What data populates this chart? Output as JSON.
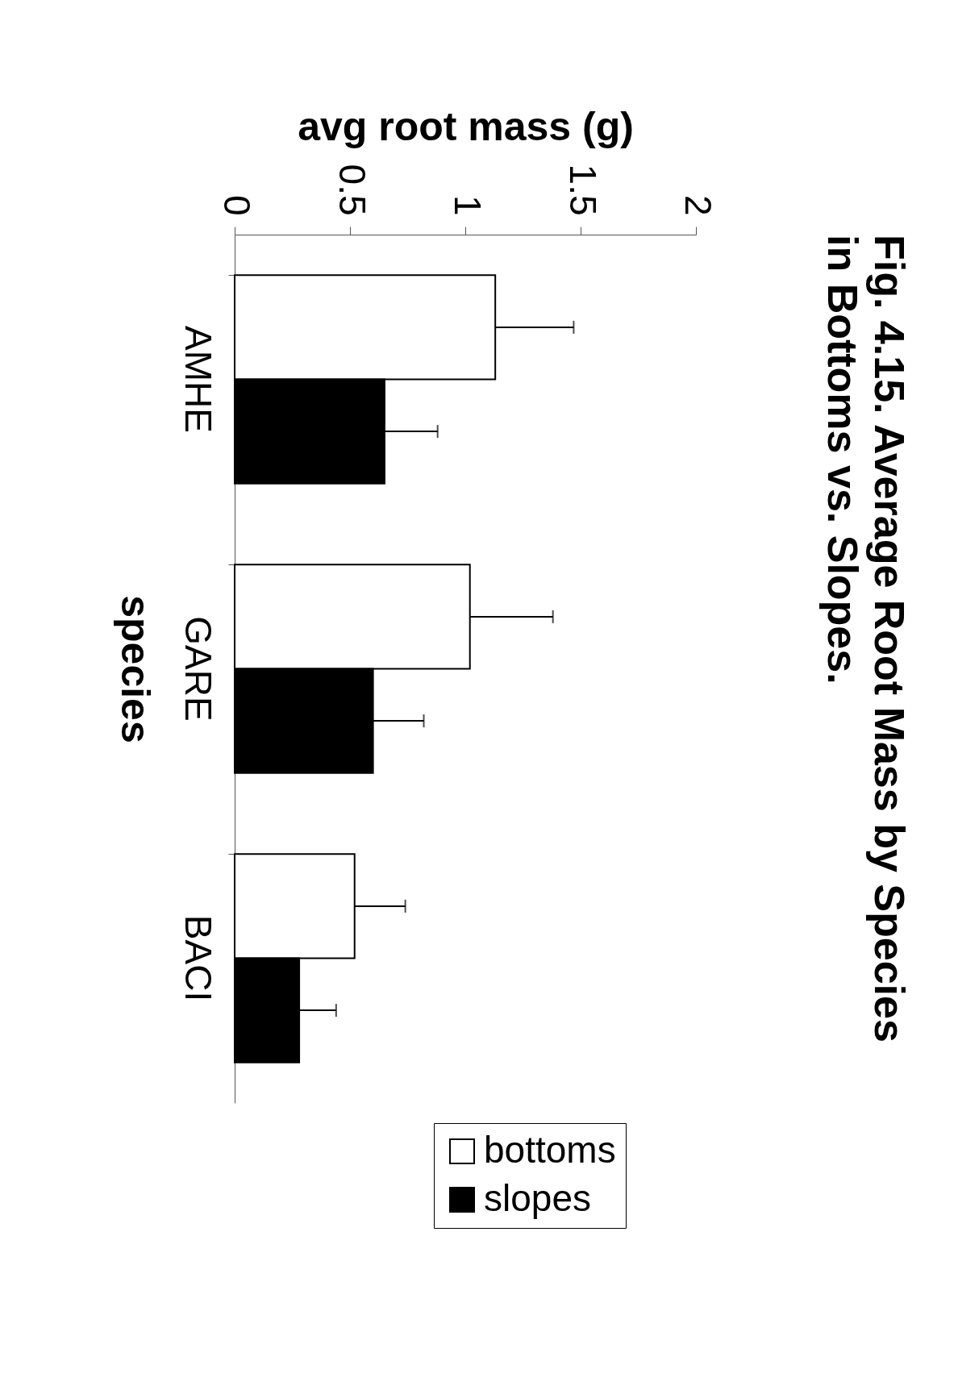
{
  "chart_data": {
    "type": "bar",
    "orientation": "horizontal",
    "title": "Fig. 4.15.  Average Root Mass by Species in Bottoms vs. Slopes.",
    "xlabel": "avg root mass (g)",
    "ylabel": "species",
    "categories": [
      "AMHE",
      "GARE",
      "BACI"
    ],
    "series": [
      {
        "name": "bottoms",
        "color": "#ffffff",
        "values": [
          1.13,
          1.02,
          0.52
        ],
        "errors": [
          [
            1.13,
            1.47
          ],
          [
            1.02,
            1.38
          ],
          [
            0.52,
            0.74
          ]
        ]
      },
      {
        "name": "slopes",
        "color": "#000000",
        "values": [
          0.65,
          0.6,
          0.28
        ],
        "errors": [
          [
            0.65,
            0.88
          ],
          [
            0.6,
            0.82
          ],
          [
            0.28,
            0.44
          ]
        ]
      }
    ],
    "xlim": [
      0,
      2
    ],
    "xticks": [
      0,
      0.5,
      1,
      1.5,
      2
    ],
    "legend": "bottom right"
  }
}
